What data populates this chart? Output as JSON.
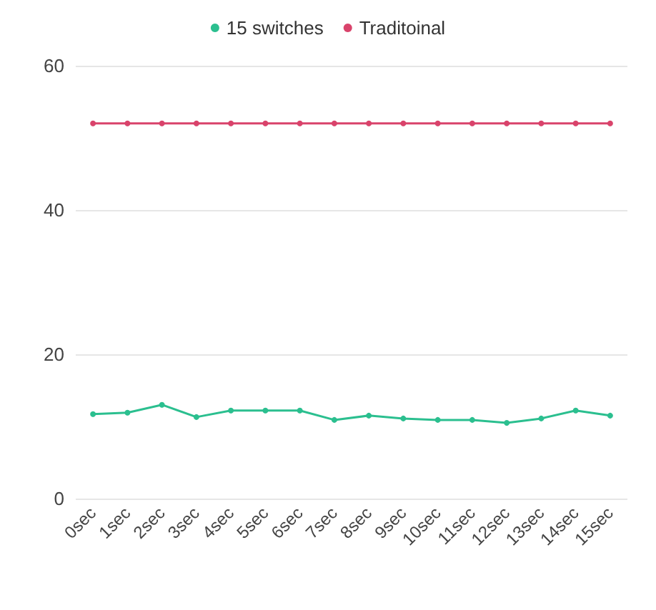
{
  "chart_data": {
    "type": "line",
    "categories": [
      "0sec",
      "1sec",
      "2sec",
      "3sec",
      "4sec",
      "5sec",
      "6sec",
      "7sec",
      "8sec",
      "9sec",
      "10sec",
      "11sec",
      "12sec",
      "13sec",
      "14sec",
      "15sec"
    ],
    "series": [
      {
        "name": "15 switches",
        "color": "#2bbf8f",
        "values": [
          11.7,
          11.9,
          13,
          11.3,
          12.2,
          12.2,
          12.2,
          10.9,
          11.5,
          11.1,
          10.9,
          10.9,
          10.5,
          11.1,
          12.2,
          11.5
        ]
      },
      {
        "name": "Traditoinal",
        "color": "#d9436b",
        "values": [
          52,
          52,
          52,
          52,
          52,
          52,
          52,
          52,
          52,
          52,
          52,
          52,
          52,
          52,
          52,
          52
        ]
      }
    ],
    "ylim": [
      0,
      60
    ],
    "yticks": [
      0,
      20,
      40,
      60
    ],
    "grid": "y",
    "legend": "top",
    "marker": "circle",
    "line_style": "solid"
  }
}
